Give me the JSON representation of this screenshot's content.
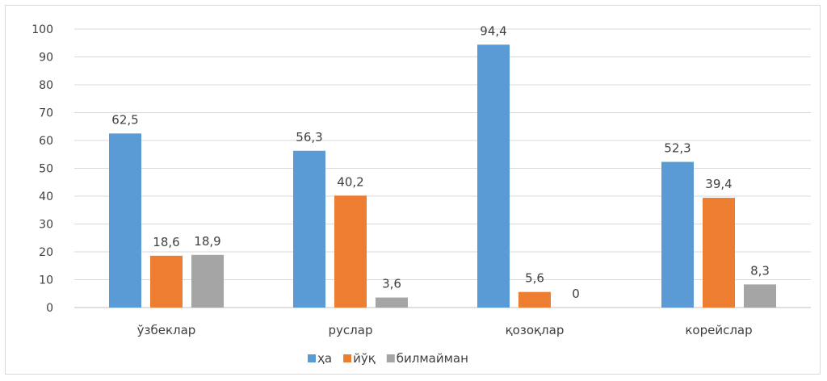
{
  "chart_data": {
    "type": "bar",
    "categories": [
      "ўзбеклар",
      "руслар",
      "қозоқлар",
      "корейслар"
    ],
    "series": [
      {
        "name": "ҳа",
        "values": [
          62.5,
          56.3,
          94.4,
          52.3
        ],
        "labels": [
          "62,5",
          "56,3",
          "94,4",
          "52,3"
        ],
        "color": "#5b9bd5"
      },
      {
        "name": "йўқ",
        "values": [
          18.6,
          40.2,
          5.6,
          39.4
        ],
        "labels": [
          "18,6",
          "40,2",
          "5,6",
          "39,4"
        ],
        "color": "#ed7d31"
      },
      {
        "name": "билмайман",
        "values": [
          18.9,
          3.6,
          0,
          8.3
        ],
        "labels": [
          "18,9",
          "3,6",
          "0",
          "8,3"
        ],
        "color": "#a5a5a5"
      }
    ],
    "y_ticks": [
      "0",
      "10",
      "20",
      "30",
      "40",
      "50",
      "60",
      "70",
      "80",
      "90",
      "100"
    ],
    "ylim": [
      0,
      100
    ],
    "grid": true,
    "legend_position": "bottom"
  }
}
